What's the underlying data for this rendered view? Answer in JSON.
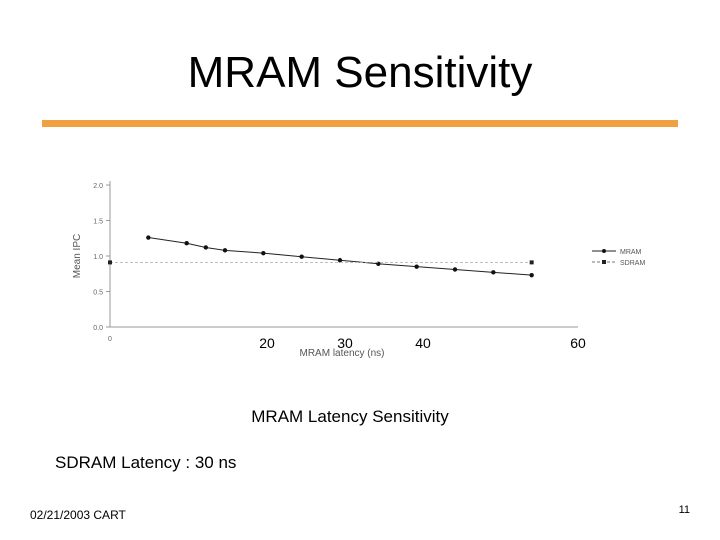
{
  "slide": {
    "title": "MRAM Sensitivity",
    "caption": "MRAM Latency Sensitivity",
    "note": "SDRAM Latency  : 30 ns",
    "footer_left": "02/21/2003 CART",
    "page_number": "11",
    "accent_color": "#f0a040"
  },
  "chart_data": {
    "type": "line",
    "xlabel": "MRAM latency (ns)",
    "ylabel": "Mean IPC",
    "xlim": [
      0,
      60
    ],
    "ylim": [
      0,
      2.0
    ],
    "y_ticks": [
      "0.0",
      "0.5",
      "1.0",
      "1.5",
      "2.0"
    ],
    "x_tick_labels": [
      "0",
      "20",
      "30",
      "40",
      "60"
    ],
    "grid": false,
    "legend_position": "right",
    "series": [
      {
        "name": "MRAM",
        "x": [
          5,
          10,
          12.5,
          15,
          20,
          25,
          30,
          35,
          40,
          45,
          50,
          55
        ],
        "values": [
          1.26,
          1.18,
          1.12,
          1.08,
          1.04,
          0.99,
          0.94,
          0.89,
          0.85,
          0.81,
          0.77,
          0.73
        ],
        "color": "#222222",
        "style": "solid"
      },
      {
        "name": "SDRAM",
        "x": [
          0,
          55
        ],
        "values": [
          0.91,
          0.91
        ],
        "color": "#444444",
        "style": "dashed"
      }
    ]
  }
}
